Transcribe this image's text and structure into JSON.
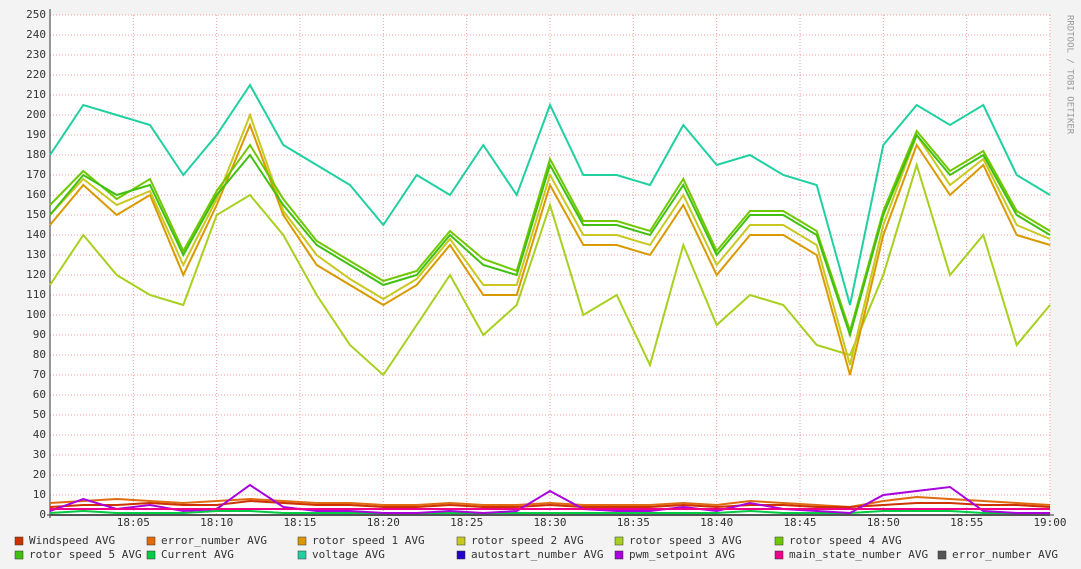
{
  "chart_data": {
    "type": "line",
    "watermark": "RRDTOOL / TOBI OETIKER",
    "x": [
      "18:00",
      "18:02",
      "18:04",
      "18:06",
      "18:08",
      "18:10",
      "18:12",
      "18:14",
      "18:16",
      "18:18",
      "18:20",
      "18:22",
      "18:24",
      "18:26",
      "18:28",
      "18:30",
      "18:32",
      "18:34",
      "18:36",
      "18:38",
      "18:40",
      "18:42",
      "18:44",
      "18:46",
      "18:48",
      "18:50",
      "18:52",
      "18:54",
      "18:56",
      "18:58",
      "19:00"
    ],
    "xlim": [
      "18:00",
      "19:00"
    ],
    "xticks": [
      "18:05",
      "18:10",
      "18:15",
      "18:20",
      "18:25",
      "18:30",
      "18:35",
      "18:40",
      "18:45",
      "18:50",
      "18:55",
      "19:00"
    ],
    "ylim": [
      0,
      250
    ],
    "yticks": [
      0,
      10,
      20,
      30,
      40,
      50,
      60,
      70,
      80,
      90,
      100,
      110,
      120,
      130,
      140,
      150,
      160,
      170,
      180,
      190,
      200,
      210,
      220,
      230,
      240,
      250
    ],
    "grid": true,
    "series": [
      {
        "name": "Windspeed AVG",
        "color": "#cc3300",
        "values": [
          4,
          5,
          5,
          6,
          5,
          5,
          7,
          6,
          5,
          5,
          4,
          4,
          5,
          4,
          4,
          5,
          4,
          4,
          4,
          5,
          4,
          5,
          5,
          4,
          4,
          5,
          6,
          6,
          5,
          5,
          4
        ]
      },
      {
        "name": "error_number AVG",
        "color": "#e06a10",
        "values": [
          6,
          7,
          8,
          7,
          6,
          7,
          8,
          7,
          6,
          6,
          5,
          5,
          6,
          5,
          5,
          6,
          5,
          5,
          5,
          6,
          5,
          7,
          6,
          5,
          4,
          7,
          9,
          8,
          7,
          6,
          5
        ]
      },
      {
        "name": "rotor speed 1 AVG",
        "color": "#d89a00",
        "values": [
          145,
          165,
          150,
          160,
          120,
          155,
          195,
          150,
          125,
          115,
          105,
          115,
          135,
          110,
          110,
          165,
          135,
          135,
          130,
          155,
          120,
          140,
          140,
          130,
          70,
          140,
          185,
          160,
          175,
          140,
          135
        ]
      },
      {
        "name": "rotor speed 2 AVG",
        "color": "#c8c820",
        "values": [
          150,
          168,
          155,
          162,
          125,
          158,
          200,
          152,
          130,
          118,
          108,
          118,
          138,
          115,
          115,
          170,
          140,
          140,
          135,
          160,
          125,
          145,
          145,
          135,
          75,
          145,
          190,
          165,
          178,
          145,
          138
        ]
      },
      {
        "name": "rotor speed 3 AVG",
        "color": "#a8d020",
        "values": [
          115,
          140,
          120,
          110,
          105,
          150,
          160,
          140,
          110,
          85,
          70,
          95,
          120,
          90,
          105,
          155,
          100,
          110,
          75,
          135,
          95,
          110,
          105,
          85,
          80,
          120,
          175,
          120,
          140,
          85,
          105
        ]
      },
      {
        "name": "rotor speed 4 AVG",
        "color": "#70c800",
        "values": [
          155,
          172,
          158,
          168,
          132,
          162,
          185,
          158,
          137,
          127,
          117,
          122,
          142,
          128,
          122,
          178,
          147,
          147,
          142,
          168,
          132,
          152,
          152,
          142,
          92,
          152,
          192,
          172,
          182,
          152,
          142
        ]
      },
      {
        "name": "rotor speed 5 AVG",
        "color": "#40c010",
        "values": [
          150,
          170,
          160,
          165,
          130,
          160,
          180,
          155,
          135,
          125,
          115,
          120,
          140,
          125,
          120,
          175,
          145,
          145,
          140,
          165,
          130,
          150,
          150,
          140,
          90,
          150,
          190,
          170,
          180,
          150,
          140
        ]
      },
      {
        "name": "Current AVG",
        "color": "#00cc44",
        "values": [
          1,
          2,
          1,
          1,
          1,
          2,
          2,
          1,
          1,
          1,
          1,
          1,
          1,
          1,
          1,
          1,
          1,
          1,
          1,
          1,
          1,
          2,
          1,
          1,
          1,
          2,
          2,
          2,
          1,
          1,
          1
        ]
      },
      {
        "name": "voltage AVG",
        "color": "#20d0a0",
        "values": [
          180,
          205,
          200,
          195,
          170,
          190,
          215,
          185,
          175,
          165,
          145,
          170,
          160,
          185,
          160,
          205,
          170,
          170,
          165,
          195,
          175,
          180,
          170,
          165,
          105,
          185,
          205,
          195,
          205,
          170,
          160
        ]
      },
      {
        "name": "autostart_number AVG",
        "color": "#2200cc",
        "values": [
          0,
          0,
          0,
          0,
          0,
          0,
          0,
          0,
          0,
          0,
          0,
          0,
          0,
          0,
          0,
          0,
          0,
          0,
          0,
          0,
          0,
          0,
          0,
          0,
          0,
          0,
          0,
          0,
          0,
          0,
          0
        ]
      },
      {
        "name": "pwm_setpoint AVG",
        "color": "#aa00dd",
        "values": [
          2,
          8,
          3,
          5,
          2,
          3,
          15,
          4,
          2,
          2,
          1,
          1,
          2,
          1,
          2,
          12,
          3,
          2,
          2,
          4,
          2,
          6,
          3,
          2,
          1,
          10,
          12,
          14,
          2,
          1,
          1
        ]
      },
      {
        "name": "main_state_number AVG",
        "color": "#ee0088",
        "values": [
          3,
          3,
          3,
          3,
          3,
          3,
          3,
          3,
          3,
          3,
          3,
          3,
          3,
          3,
          3,
          3,
          3,
          3,
          3,
          3,
          3,
          3,
          3,
          3,
          3,
          3,
          3,
          3,
          3,
          3,
          3
        ]
      },
      {
        "name": "error_number AVG",
        "color": "#555555",
        "values": [
          0,
          0,
          0,
          0,
          0,
          0,
          0,
          0,
          0,
          0,
          0,
          0,
          0,
          0,
          0,
          0,
          0,
          0,
          0,
          0,
          0,
          0,
          0,
          0,
          0,
          0,
          0,
          0,
          0,
          0,
          0
        ]
      }
    ]
  }
}
